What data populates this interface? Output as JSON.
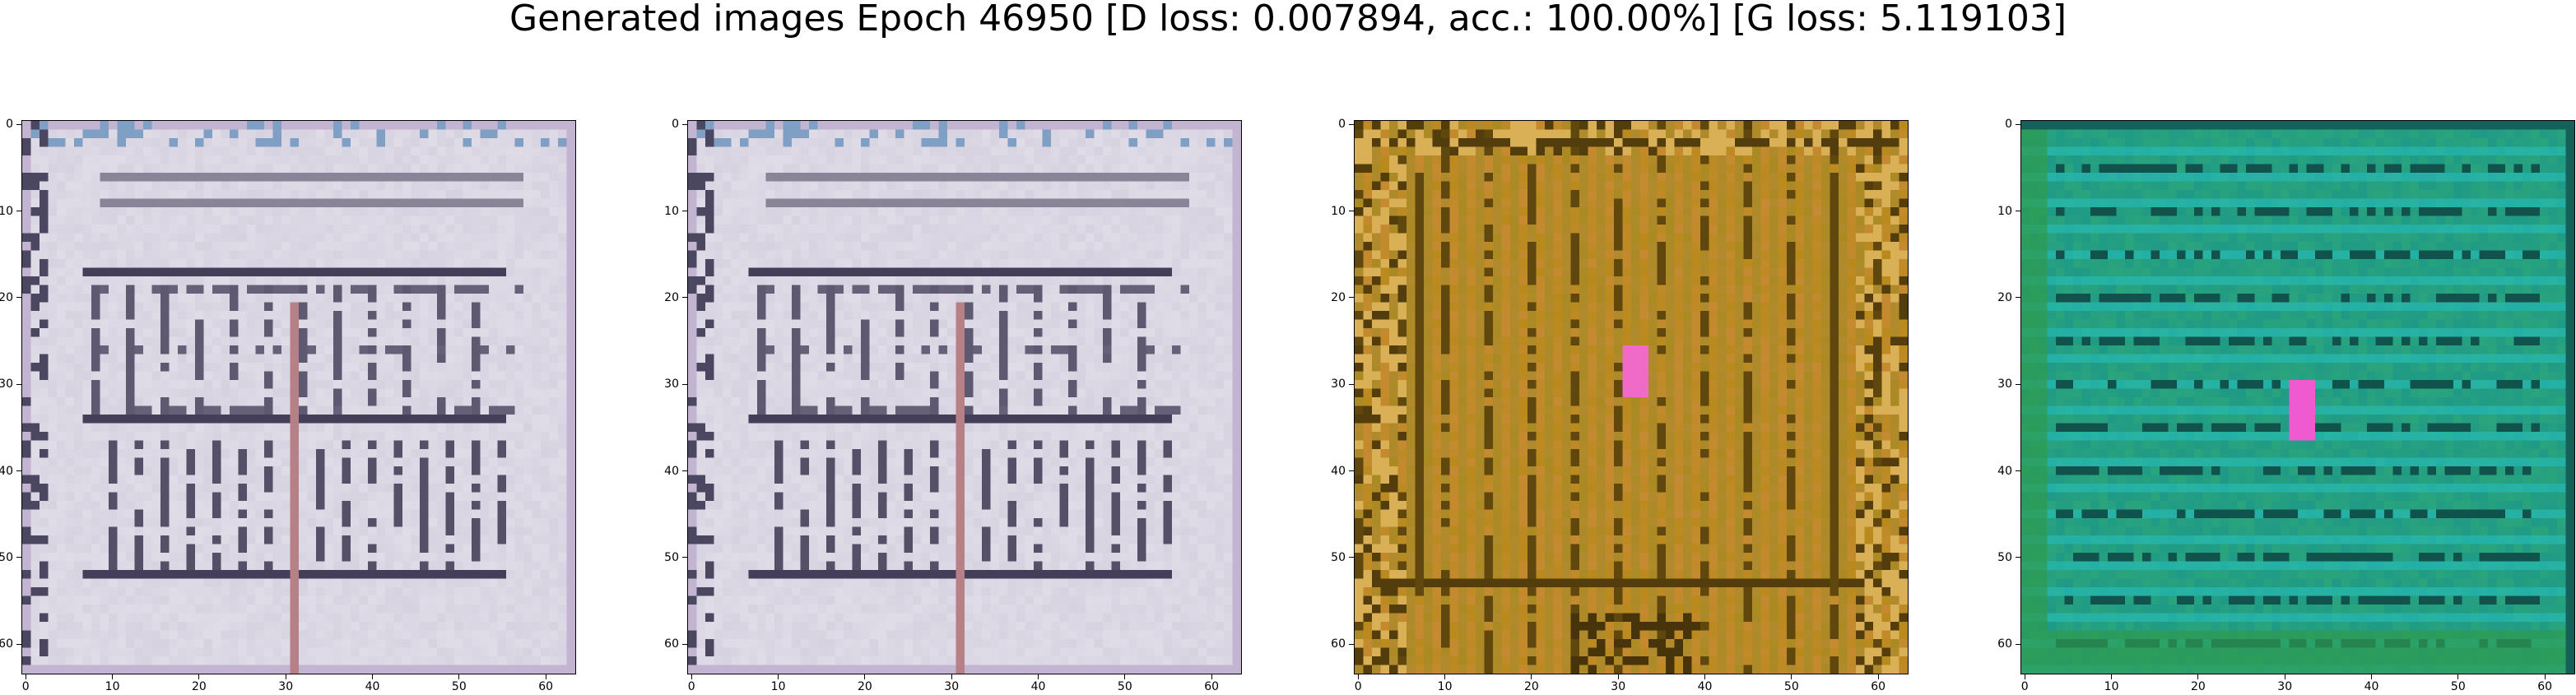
{
  "title": "Generated images Epoch 46950 [D loss: 0.007894, acc.: 100.00%] [G loss: 5.119103]",
  "chart_data": [
    {
      "type": "heatmap",
      "image_size": 64,
      "xlim": [
        0,
        63
      ],
      "ylim": [
        63,
        0
      ],
      "xticks": [
        "0",
        "10",
        "20",
        "30",
        "40",
        "50",
        "60"
      ],
      "yticks": [
        "0",
        "10",
        "20",
        "30",
        "40",
        "50",
        "60"
      ],
      "palette": {
        "base": "#d6d2e0",
        "dark": "#2a2440",
        "accent": "#b7a2c8",
        "highlight": "#f1eef5"
      },
      "pattern": "building-facade"
    },
    {
      "type": "heatmap",
      "image_size": 64,
      "xlim": [
        0,
        63
      ],
      "ylim": [
        63,
        0
      ],
      "xticks": [
        "0",
        "10",
        "20",
        "30",
        "40",
        "50",
        "60"
      ],
      "yticks": [
        "0",
        "10",
        "20",
        "30",
        "40",
        "50",
        "60"
      ],
      "palette": {
        "base": "#d6d2e0",
        "dark": "#2a2440",
        "accent": "#b7a2c8",
        "highlight": "#f1eef5"
      },
      "pattern": "building-facade"
    },
    {
      "type": "heatmap",
      "image_size": 64,
      "xlim": [
        0,
        63
      ],
      "ylim": [
        63,
        0
      ],
      "xticks": [
        "0",
        "10",
        "20",
        "30",
        "40",
        "50",
        "60"
      ],
      "yticks": [
        "0",
        "10",
        "20",
        "30",
        "40",
        "50",
        "60"
      ],
      "palette": {
        "base": "#b88a1c",
        "dark": "#3a2a08",
        "accent": "#9c8a2a",
        "highlight": "#e08a5a"
      },
      "spot_color": "#f06ac8",
      "pattern": "vertical-stripes"
    },
    {
      "type": "heatmap",
      "image_size": 64,
      "xlim": [
        0,
        63
      ],
      "ylim": [
        63,
        0
      ],
      "xticks": [
        "0",
        "10",
        "20",
        "30",
        "40",
        "50",
        "60"
      ],
      "yticks": [
        "0",
        "10",
        "20",
        "30",
        "40",
        "50",
        "60"
      ],
      "palette": {
        "base": "#1f9a86",
        "dark": "#0e3a3a",
        "accent": "#27c0c0",
        "highlight": "#3fb86a"
      },
      "spot_color": "#f05ad0",
      "pattern": "horizontal-stripes"
    }
  ]
}
